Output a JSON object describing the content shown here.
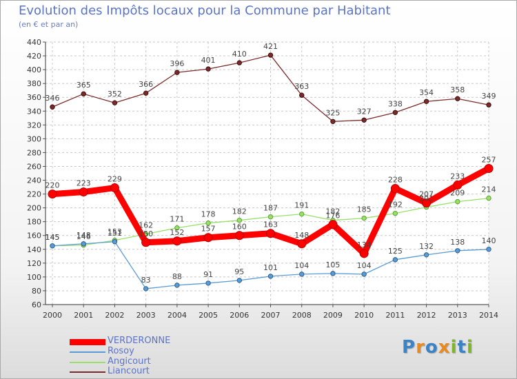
{
  "title": "Evolution des Impôts locaux pour la Commune par Habitant",
  "subtitle": "(en € et par an)",
  "brand": {
    "letters": [
      "P",
      "r",
      "o",
      "x",
      "i",
      "t",
      "i"
    ],
    "colors": [
      "#3b83c4",
      "#e98a1f",
      "#3b83c4",
      "#e98a1f",
      "#7fb52b",
      "#3b83c4",
      "#7fb52b"
    ]
  },
  "chart_data": {
    "type": "line",
    "x": [
      "2000",
      "2001",
      "2002",
      "2003",
      "2004",
      "2005",
      "2006",
      "2007",
      "2008",
      "2009",
      "2010",
      "2011",
      "2012",
      "2013",
      "2014"
    ],
    "ylim": [
      60,
      440
    ],
    "yticks": [
      60,
      80,
      100,
      120,
      140,
      160,
      180,
      200,
      220,
      240,
      260,
      280,
      300,
      320,
      340,
      360,
      380,
      400,
      420,
      440
    ],
    "grid": true,
    "legend_position": "bottom-left",
    "series": [
      {
        "name": "VERDERONNE",
        "color": "#ff0000",
        "values": [
          220,
          223,
          229,
          150,
          152,
          157,
          160,
          163,
          148,
          176,
          134,
          228,
          207,
          233,
          257
        ]
      },
      {
        "name": "Rosoy",
        "color": "#5b9bd5",
        "values": [
          145,
          148,
          151,
          83,
          88,
          91,
          95,
          101,
          104,
          105,
          104,
          125,
          132,
          138,
          140
        ]
      },
      {
        "name": "Angicourt",
        "color": "#99e06a",
        "values": [
          145,
          146,
          153,
          162,
          171,
          178,
          182,
          187,
          191,
          182,
          185,
          192,
          201,
          209,
          214
        ]
      },
      {
        "name": "Liancourt",
        "color": "#7b2a2a",
        "values": [
          346,
          365,
          352,
          366,
          396,
          401,
          410,
          421,
          363,
          325,
          327,
          338,
          354,
          358,
          349
        ]
      }
    ]
  }
}
